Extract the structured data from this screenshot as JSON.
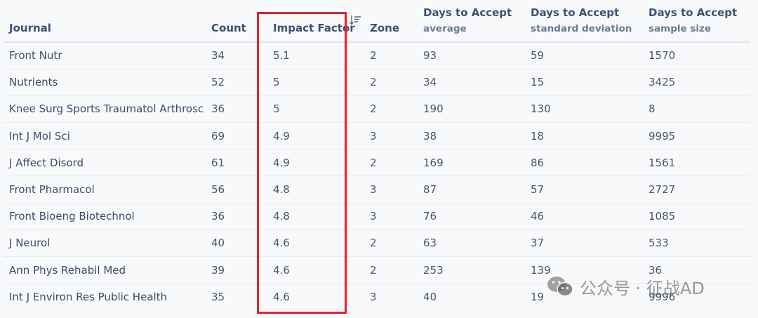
{
  "table": {
    "headers": {
      "journal": "Journal",
      "count": "Count",
      "impact_factor": "Impact Factor",
      "zone": "Zone",
      "days_avg_top": "Days to Accept",
      "days_avg_sub": "average",
      "days_sd_top": "Days to Accept",
      "days_sd_sub": "standard deviation",
      "days_ss_top": "Days to Accept",
      "days_ss_sub": "sample size"
    },
    "rows": [
      {
        "journal": "Front Nutr",
        "count": "34",
        "impact_factor": "5.1",
        "zone": "2",
        "avg": "93",
        "sd": "59",
        "ss": "1570"
      },
      {
        "journal": "Nutrients",
        "count": "52",
        "impact_factor": "5",
        "zone": "2",
        "avg": "34",
        "sd": "15",
        "ss": "3425"
      },
      {
        "journal": "Knee Surg Sports Traumatol Arthrosc",
        "count": "36",
        "impact_factor": "5",
        "zone": "2",
        "avg": "190",
        "sd": "130",
        "ss": "8"
      },
      {
        "journal": "Int J Mol Sci",
        "count": "69",
        "impact_factor": "4.9",
        "zone": "3",
        "avg": "38",
        "sd": "18",
        "ss": "9995"
      },
      {
        "journal": "J Affect Disord",
        "count": "61",
        "impact_factor": "4.9",
        "zone": "2",
        "avg": "169",
        "sd": "86",
        "ss": "1561"
      },
      {
        "journal": "Front Pharmacol",
        "count": "56",
        "impact_factor": "4.8",
        "zone": "3",
        "avg": "87",
        "sd": "57",
        "ss": "2727"
      },
      {
        "journal": "Front Bioeng Biotechnol",
        "count": "36",
        "impact_factor": "4.8",
        "zone": "3",
        "avg": "76",
        "sd": "46",
        "ss": "1085"
      },
      {
        "journal": "J Neurol",
        "count": "40",
        "impact_factor": "4.6",
        "zone": "2",
        "avg": "63",
        "sd": "37",
        "ss": "533"
      },
      {
        "journal": "Ann Phys Rehabil Med",
        "count": "39",
        "impact_factor": "4.6",
        "zone": "2",
        "avg": "253",
        "sd": "139",
        "ss": "36"
      },
      {
        "journal": "Int J Environ Res Public Health",
        "count": "35",
        "impact_factor": "4.6",
        "zone": "3",
        "avg": "40",
        "sd": "19",
        "ss": "9996"
      }
    ],
    "sort_icon": "sort-descending-icon",
    "highlight_color": "#e3242b"
  },
  "watermark": {
    "text": "公众号 · 征战AD",
    "icon": "wechat-icon"
  }
}
